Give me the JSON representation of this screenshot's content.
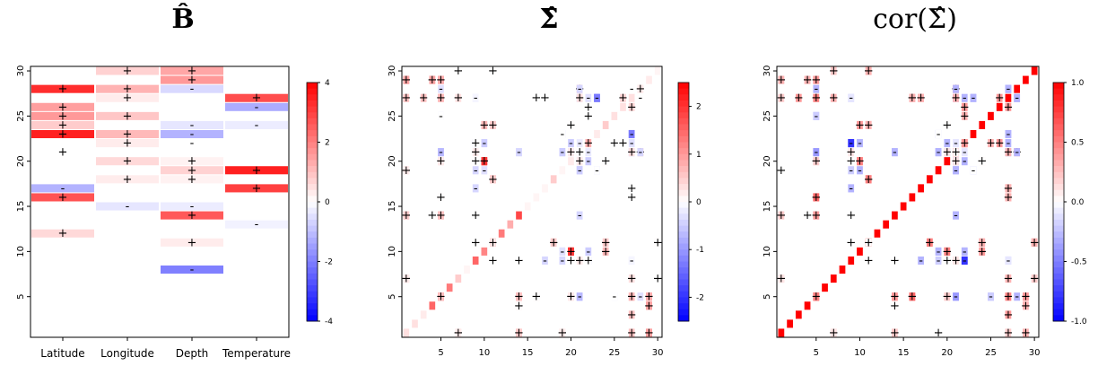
{
  "titles": {
    "p1": "B̂",
    "p2": "Σ̂",
    "p3": "cor(Σ̂)"
  },
  "chart_data": [
    {
      "type": "heatmap",
      "title": "B̂",
      "x_categories": [
        "Latitude",
        "Longitude",
        "Depth",
        "Temperature"
      ],
      "y_ticks": [
        5,
        10,
        15,
        20,
        25,
        30
      ],
      "ylim": [
        0.5,
        30.5
      ],
      "legend": {
        "position": "right",
        "range": [
          -4,
          4
        ],
        "ticks": [
          "-4",
          "-2",
          "0",
          "2",
          "4"
        ]
      },
      "colorscale": [
        "#0000ff",
        "#ffffff",
        "#ff0000"
      ],
      "cells": [
        [
          1,
          28,
          3.3,
          "+"
        ],
        [
          1,
          26,
          1.5,
          "+"
        ],
        [
          1,
          25,
          1.6,
          "+"
        ],
        [
          1,
          24,
          0.8,
          "+"
        ],
        [
          1,
          23,
          3.5,
          "+"
        ],
        [
          1,
          21,
          0,
          "+"
        ],
        [
          1,
          17,
          -1.2,
          "-"
        ],
        [
          1,
          16,
          2.7,
          "+"
        ],
        [
          1,
          12,
          0.6,
          "+"
        ],
        [
          2,
          30,
          0.7,
          "+"
        ],
        [
          2,
          28,
          1.2,
          "+"
        ],
        [
          2,
          27,
          0.3,
          "+"
        ],
        [
          2,
          25,
          0.9,
          "+"
        ],
        [
          2,
          23,
          1.1,
          "+"
        ],
        [
          2,
          22,
          0.3,
          "+"
        ],
        [
          2,
          20,
          0.6,
          "+"
        ],
        [
          2,
          18,
          0.3,
          "+"
        ],
        [
          2,
          15,
          -0.4,
          "-"
        ],
        [
          3,
          30,
          1.4,
          "+"
        ],
        [
          3,
          29,
          1.6,
          "+"
        ],
        [
          3,
          28,
          -0.6,
          "-"
        ],
        [
          3,
          24,
          -0.4,
          "-"
        ],
        [
          3,
          23,
          -1.2,
          "-"
        ],
        [
          3,
          22,
          0,
          "-"
        ],
        [
          3,
          20,
          0.2,
          "+"
        ],
        [
          3,
          19,
          0.7,
          "+"
        ],
        [
          3,
          18,
          0.2,
          "+"
        ],
        [
          3,
          15,
          -0.3,
          "-"
        ],
        [
          3,
          14,
          2.6,
          "+"
        ],
        [
          3,
          11,
          0.3,
          "+"
        ],
        [
          3,
          8,
          -2.0,
          "-"
        ],
        [
          4,
          27,
          2.8,
          "+"
        ],
        [
          4,
          26,
          -1.3,
          "-"
        ],
        [
          4,
          24,
          -0.3,
          "-"
        ],
        [
          4,
          19,
          3.5,
          "+"
        ],
        [
          4,
          17,
          3.0,
          "+"
        ],
        [
          4,
          13,
          -0.2,
          "-"
        ]
      ]
    },
    {
      "type": "heatmap",
      "title": "Σ̂",
      "x_ticks": [
        5,
        10,
        15,
        20,
        25,
        30
      ],
      "y_ticks": [
        5,
        10,
        15,
        20,
        25,
        30
      ],
      "xlim": [
        0.5,
        30.5
      ],
      "ylim": [
        0.5,
        30.5
      ],
      "legend": {
        "position": "right",
        "range": [
          -2.5,
          2.5
        ],
        "ticks": [
          "-2",
          "-1",
          "0",
          "1",
          "2"
        ]
      },
      "colorscale": [
        "#0000ff",
        "#ffffff",
        "#ff0000"
      ],
      "diagonal": [
        0.3,
        0.3,
        0.2,
        1.5,
        1.6,
        1.3,
        0.5,
        0.1,
        1.5,
        1.2,
        1.2,
        1.3,
        0.8,
        1.8,
        0.1,
        0.1,
        0.1,
        0.5,
        0.1,
        0.2,
        0.2,
        0.2,
        0.2,
        0.5,
        0.3,
        0.3,
        0.3,
        0.3,
        0.2,
        0.1
      ],
      "cells": [
        [
          1,
          29,
          1.5,
          "+"
        ],
        [
          1,
          27,
          0.6,
          "+"
        ],
        [
          1,
          19,
          0.3,
          "+"
        ],
        [
          1,
          14,
          0.8,
          "+"
        ],
        [
          1,
          7,
          0.5,
          "+"
        ],
        [
          4,
          29,
          1.2,
          "+"
        ],
        [
          4,
          14,
          0.4,
          "+"
        ],
        [
          5,
          29,
          1.2,
          "+"
        ],
        [
          5,
          27,
          0.6,
          "+"
        ],
        [
          5,
          25,
          -0.2,
          "-"
        ],
        [
          5,
          21,
          -0.6,
          "-"
        ],
        [
          5,
          20,
          0.3,
          "+"
        ],
        [
          5,
          16,
          0.3,
          "+"
        ],
        [
          5,
          14,
          0.8,
          "+"
        ],
        [
          5,
          5,
          0.6,
          "+"
        ],
        [
          7,
          30,
          0,
          "+"
        ],
        [
          7,
          27,
          0,
          "+"
        ],
        [
          7,
          1,
          0.2,
          "+"
        ],
        [
          9,
          27,
          -0.2,
          "-"
        ],
        [
          9,
          22,
          -0.5,
          "-"
        ],
        [
          9,
          21,
          0,
          "+"
        ],
        [
          9,
          20,
          0.1,
          "+"
        ],
        [
          9,
          17,
          -0.4,
          "-"
        ],
        [
          9,
          14,
          0,
          "+"
        ],
        [
          9,
          11,
          0,
          "+"
        ],
        [
          10,
          24,
          0.4,
          "+"
        ],
        [
          10,
          22,
          -0.2,
          "-"
        ],
        [
          10,
          20,
          2.3,
          "+"
        ],
        [
          10,
          19,
          -0.2,
          "-"
        ],
        [
          11,
          30,
          0.2,
          "+"
        ],
        [
          11,
          24,
          0.4,
          "+"
        ],
        [
          11,
          18,
          0.6,
          "+"
        ],
        [
          11,
          11,
          0.2,
          "+"
        ],
        [
          11,
          9,
          0,
          "+"
        ],
        [
          14,
          21,
          -0.3,
          "-"
        ],
        [
          14,
          9,
          0,
          "+"
        ],
        [
          14,
          5,
          0.6,
          "+"
        ],
        [
          14,
          4,
          0,
          "+"
        ],
        [
          14,
          1,
          0.5,
          "+"
        ],
        [
          16,
          27,
          0,
          "+"
        ],
        [
          16,
          5,
          0,
          "+"
        ],
        [
          17,
          27,
          0,
          "+"
        ],
        [
          18,
          11,
          0.5,
          "+"
        ],
        [
          19,
          23,
          -0.4,
          "-"
        ],
        [
          19,
          21,
          -0.6,
          "-"
        ],
        [
          19,
          10,
          -0.3,
          "-"
        ],
        [
          19,
          9,
          -0.4,
          "-"
        ],
        [
          19,
          1,
          0.2,
          "+"
        ],
        [
          20,
          24,
          0.2,
          "+"
        ],
        [
          20,
          21,
          -0.3,
          "-"
        ],
        [
          20,
          10,
          2.0,
          "+"
        ],
        [
          20,
          9,
          0,
          "+"
        ],
        [
          20,
          5,
          0.2,
          "+"
        ],
        [
          21,
          28,
          0.8,
          "+"
        ],
        [
          21,
          27,
          -0.6,
          "-"
        ],
        [
          21,
          22,
          -0.2,
          "-"
        ],
        [
          21,
          21,
          0,
          "+"
        ],
        [
          21,
          20,
          0.2,
          "+"
        ],
        [
          21,
          19,
          -0.5,
          "-"
        ],
        [
          21,
          14,
          -0.4,
          "-"
        ],
        [
          21,
          9,
          0.2,
          "+"
        ],
        [
          21,
          5,
          -0.7,
          "-"
        ],
        [
          22,
          27,
          -0.3,
          "-"
        ],
        [
          22,
          26,
          0,
          "+"
        ],
        [
          22,
          22,
          0.8,
          "+"
        ],
        [
          22,
          20,
          -0.5,
          "-"
        ],
        [
          22,
          10,
          -0.5,
          "-"
        ],
        [
          22,
          9,
          0,
          "+"
        ],
        [
          23,
          27,
          -1.3,
          "-"
        ],
        [
          23,
          19,
          0,
          "-"
        ],
        [
          24,
          20,
          0,
          "+"
        ],
        [
          24,
          11,
          0.5,
          "+"
        ],
        [
          24,
          10,
          0.7,
          "+"
        ],
        [
          25,
          22,
          0,
          "+"
        ],
        [
          25,
          5,
          0,
          "-"
        ],
        [
          26,
          27,
          0.4,
          "+"
        ],
        [
          27,
          28,
          0,
          "-"
        ],
        [
          27,
          23,
          -1.3,
          "-"
        ],
        [
          27,
          21,
          0.3,
          "+"
        ],
        [
          27,
          17,
          0,
          "+"
        ],
        [
          27,
          16,
          0,
          "+"
        ],
        [
          27,
          9,
          -0.1,
          "-"
        ],
        [
          27,
          7,
          0.3,
          "+"
        ],
        [
          27,
          5,
          0.7,
          "+"
        ],
        [
          27,
          3,
          0.6,
          "+"
        ],
        [
          28,
          28,
          0.2,
          "+"
        ],
        [
          28,
          21,
          -0.4,
          "-"
        ],
        [
          28,
          5,
          -0.3,
          "-"
        ],
        [
          29,
          5,
          0.8,
          "+"
        ],
        [
          29,
          4,
          0.9,
          "+"
        ],
        [
          29,
          1,
          0.9,
          "+"
        ],
        [
          30,
          11,
          0,
          "+"
        ],
        [
          30,
          7,
          0,
          "+"
        ]
      ]
    },
    {
      "type": "heatmap",
      "title": "cor(Σ̂)",
      "x_ticks": [
        5,
        10,
        15,
        20,
        25,
        30
      ],
      "y_ticks": [
        5,
        10,
        15,
        20,
        25,
        30
      ],
      "xlim": [
        0.5,
        30.5
      ],
      "ylim": [
        0.5,
        30.5
      ],
      "legend": {
        "position": "right",
        "range": [
          -1.0,
          1.0
        ],
        "ticks": [
          "-1.0",
          "-0.5",
          "0.0",
          "0.5",
          "1.0"
        ]
      },
      "colorscale": [
        "#0000ff",
        "#ffffff",
        "#ff0000"
      ],
      "diagonal_value": 1.0,
      "cells": [
        [
          1,
          29,
          0.2,
          "+"
        ],
        [
          1,
          27,
          0.2,
          "+"
        ],
        [
          1,
          19,
          0,
          "+"
        ],
        [
          1,
          14,
          0.1,
          "+"
        ],
        [
          1,
          7,
          0.2,
          "+"
        ],
        [
          4,
          29,
          0.2,
          "+"
        ],
        [
          4,
          14,
          0.1,
          "+"
        ],
        [
          5,
          29,
          0.3,
          "+"
        ],
        [
          5,
          27,
          0.2,
          "+"
        ],
        [
          5,
          25,
          -0.3,
          "-"
        ],
        [
          5,
          21,
          -0.3,
          "-"
        ],
        [
          5,
          20,
          0.1,
          "+"
        ],
        [
          5,
          16,
          0.6,
          "+"
        ],
        [
          5,
          14,
          0.3,
          "+"
        ],
        [
          5,
          5,
          0.5,
          "+"
        ],
        [
          7,
          30,
          0,
          "+"
        ],
        [
          7,
          27,
          0,
          "+"
        ],
        [
          7,
          1,
          0.1,
          "+"
        ],
        [
          9,
          27,
          -0.2,
          "-"
        ],
        [
          9,
          22,
          -0.8,
          "-"
        ],
        [
          9,
          21,
          0,
          "+"
        ],
        [
          9,
          20,
          0.1,
          "+"
        ],
        [
          9,
          17,
          -0.3,
          "-"
        ],
        [
          9,
          14,
          0,
          "+"
        ],
        [
          9,
          11,
          0,
          "+"
        ],
        [
          10,
          24,
          0.2,
          "+"
        ],
        [
          10,
          22,
          -0.2,
          "-"
        ],
        [
          10,
          20,
          0.5,
          "+"
        ],
        [
          10,
          19,
          -0.1,
          "-"
        ],
        [
          11,
          30,
          0.4,
          "+"
        ],
        [
          11,
          24,
          0.4,
          "+"
        ],
        [
          11,
          18,
          0.5,
          "+"
        ],
        [
          11,
          11,
          0,
          "+"
        ],
        [
          11,
          9,
          0,
          "+"
        ],
        [
          14,
          21,
          -0.2,
          "-"
        ],
        [
          14,
          9,
          0,
          "+"
        ],
        [
          14,
          5,
          0.4,
          "+"
        ],
        [
          14,
          4,
          0,
          "+"
        ],
        [
          14,
          1,
          0.2,
          "+"
        ],
        [
          16,
          27,
          0.4,
          "+"
        ],
        [
          16,
          5,
          0.6,
          "+"
        ],
        [
          17,
          27,
          0.4,
          "+"
        ],
        [
          18,
          11,
          0.5,
          "+"
        ],
        [
          19,
          23,
          -0.3,
          "-"
        ],
        [
          19,
          21,
          -0.3,
          "-"
        ],
        [
          19,
          10,
          -0.3,
          "-"
        ],
        [
          19,
          9,
          -0.2,
          "-"
        ],
        [
          19,
          1,
          0,
          "+"
        ],
        [
          20,
          24,
          0.1,
          "+"
        ],
        [
          20,
          21,
          -0.3,
          "-"
        ],
        [
          20,
          10,
          0.5,
          "+"
        ],
        [
          20,
          9,
          0,
          "+"
        ],
        [
          20,
          5,
          0.2,
          "+"
        ],
        [
          21,
          28,
          0.4,
          "+"
        ],
        [
          21,
          27,
          -0.3,
          "-"
        ],
        [
          21,
          22,
          -0.1,
          "-"
        ],
        [
          21,
          21,
          0,
          "+"
        ],
        [
          21,
          20,
          0.1,
          "+"
        ],
        [
          21,
          19,
          -0.3,
          "-"
        ],
        [
          21,
          14,
          -0.3,
          "-"
        ],
        [
          21,
          9,
          0.1,
          "+"
        ],
        [
          21,
          5,
          -0.4,
          "-"
        ],
        [
          22,
          27,
          -0.3,
          "-"
        ],
        [
          22,
          26,
          0.4,
          "+"
        ],
        [
          22,
          22,
          0.4,
          "+"
        ],
        [
          22,
          20,
          -0.3,
          "-"
        ],
        [
          22,
          10,
          -0.3,
          "-"
        ],
        [
          22,
          9,
          -0.8,
          "-"
        ],
        [
          23,
          27,
          -0.3,
          "-"
        ],
        [
          23,
          19,
          0,
          "-"
        ],
        [
          24,
          20,
          0,
          "+"
        ],
        [
          24,
          11,
          0.3,
          "+"
        ],
        [
          24,
          10,
          0.4,
          "+"
        ],
        [
          25,
          22,
          0.3,
          "+"
        ],
        [
          25,
          5,
          -0.2,
          "-"
        ],
        [
          26,
          27,
          0.4,
          "+"
        ],
        [
          27,
          28,
          -0.4,
          "-"
        ],
        [
          27,
          23,
          -0.3,
          "-"
        ],
        [
          27,
          21,
          0.3,
          "+"
        ],
        [
          27,
          17,
          0.3,
          "+"
        ],
        [
          27,
          16,
          0.3,
          "+"
        ],
        [
          27,
          9,
          -0.1,
          "-"
        ],
        [
          27,
          7,
          0.3,
          "+"
        ],
        [
          27,
          5,
          0.5,
          "+"
        ],
        [
          27,
          3,
          0.4,
          "+"
        ],
        [
          28,
          27,
          -0.3,
          "-"
        ],
        [
          28,
          21,
          -0.3,
          "-"
        ],
        [
          28,
          5,
          -0.3,
          "-"
        ],
        [
          29,
          5,
          0.4,
          "+"
        ],
        [
          29,
          4,
          0.3,
          "+"
        ],
        [
          29,
          1,
          0.3,
          "+"
        ],
        [
          30,
          11,
          0.3,
          "+"
        ],
        [
          30,
          7,
          0.2,
          "+"
        ]
      ]
    }
  ]
}
